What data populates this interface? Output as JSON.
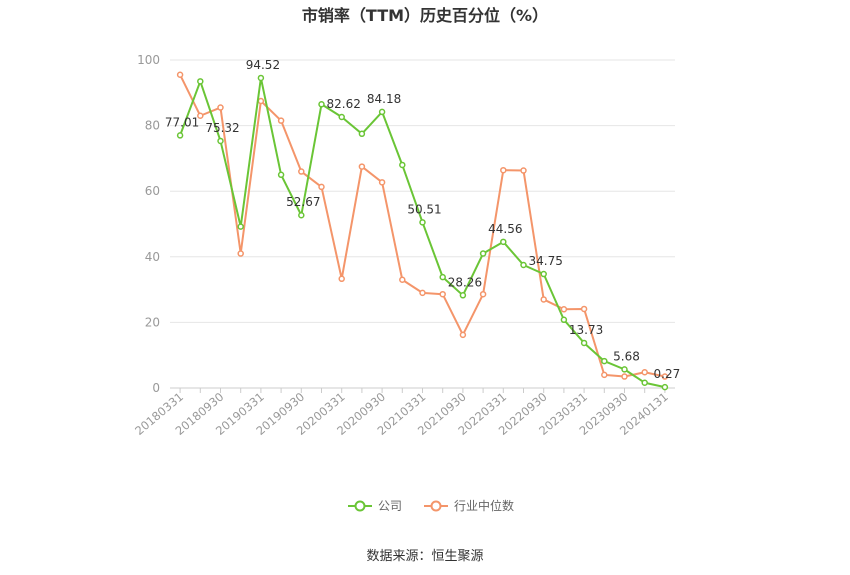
{
  "chart_data": {
    "type": "line",
    "title": "市销率（TTM）历史百分位（%）",
    "source": "数据来源：恒生聚源",
    "ylim": [
      0,
      100
    ],
    "yticks": [
      0,
      20,
      40,
      60,
      80,
      100
    ],
    "grid": true,
    "legend_position": "bottom-center",
    "x": [
      "20180331",
      "20180630",
      "20180930",
      "20181231",
      "20190331",
      "20190630",
      "20190930",
      "20191231",
      "20200331",
      "20200630",
      "20200930",
      "20201231",
      "20210331",
      "20210630",
      "20210930",
      "20211231",
      "20220331",
      "20220630",
      "20220930",
      "20221231",
      "20230331",
      "20230630",
      "20230930",
      "20231231",
      "20240131"
    ],
    "x_tick_labels": [
      "20180331",
      "20180930",
      "20190331",
      "20190930",
      "20200331",
      "20200930",
      "20210331",
      "20210930",
      "20220331",
      "20220930",
      "20230331",
      "20230930",
      "20240131"
    ],
    "series": [
      {
        "name": "公司",
        "color": "#6ac536",
        "values": [
          77.01,
          93.5,
          75.32,
          49.2,
          94.52,
          65.0,
          52.67,
          86.5,
          82.62,
          77.5,
          84.18,
          68.0,
          50.51,
          33.8,
          28.26,
          41.0,
          44.56,
          37.5,
          34.75,
          20.8,
          13.73,
          8.2,
          5.68,
          1.6,
          0.27
        ],
        "labeled_points": [
          {
            "index": 0,
            "text": "77.01"
          },
          {
            "index": 2,
            "text": "75.32"
          },
          {
            "index": 4,
            "text": "94.52"
          },
          {
            "index": 6,
            "text": "52.67"
          },
          {
            "index": 8,
            "text": "82.62"
          },
          {
            "index": 10,
            "text": "84.18"
          },
          {
            "index": 12,
            "text": "50.51"
          },
          {
            "index": 14,
            "text": "28.26"
          },
          {
            "index": 16,
            "text": "44.56"
          },
          {
            "index": 18,
            "text": "34.75"
          },
          {
            "index": 20,
            "text": "13.73"
          },
          {
            "index": 22,
            "text": "5.68"
          },
          {
            "index": 24,
            "text": "0.27"
          }
        ]
      },
      {
        "name": "行业中位数",
        "color": "#f4956a",
        "values": [
          95.5,
          83.0,
          85.5,
          41.0,
          87.5,
          81.5,
          66.0,
          61.3,
          33.3,
          67.5,
          62.7,
          33.0,
          29.0,
          28.6,
          16.2,
          28.6,
          66.4,
          66.3,
          27.0,
          24.0,
          24.1,
          4.0,
          3.5,
          4.8,
          3.5
        ]
      }
    ]
  }
}
